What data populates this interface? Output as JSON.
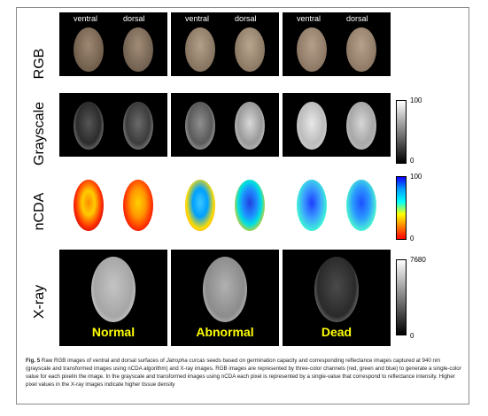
{
  "side_labels": {
    "ventral": "ventral",
    "dorsal": "dorsal"
  },
  "rows": [
    "RGB",
    "Grayscale",
    "nCDA",
    "X-ray"
  ],
  "statuses": [
    "Normal",
    "Abnormal",
    "Dead"
  ],
  "colorbars": {
    "grayscale": {
      "max": "100",
      "min": "0"
    },
    "ncda": {
      "max": "100",
      "min": "0"
    },
    "xray": {
      "max": "7680",
      "min": "0"
    }
  },
  "caption": {
    "fig_label": "Fig. 5",
    "text_a": "Raw RGB images of ventral and dorsal surfaces of ",
    "species": "Jatropha curcas",
    "text_b": " seeds based on germination capacity and corresponding reflectance images captured at 940 nm (grayscale and transformed images using nCDA algorithm) and X-ray images. RGB images are represented by three-color channels (red, green and blue) to generate a single-color value for each pixelin the image. In the grayscale and transformed images using nCDA each pixel is represented by a single-value that correspond to reflectance intensity. Higher pixel values in the X-ray images indicate higher tissue density"
  },
  "colors": {
    "status_text": "#ffff00",
    "panel_bg": "#000000"
  }
}
